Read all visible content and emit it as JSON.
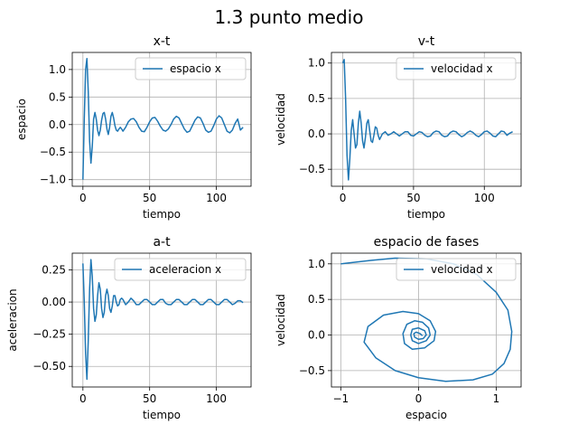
{
  "figure": {
    "title": "1.3 punto medio"
  },
  "series_color": "#1f77b4",
  "chart_data": [
    {
      "id": "xt",
      "type": "line",
      "title": "x-t",
      "xlabel": "tiempo",
      "ylabel": "espacio",
      "xlim": [
        -8,
        126
      ],
      "ylim": [
        -1.12,
        1.31
      ],
      "xticks": [
        0,
        50,
        100
      ],
      "yticks": [
        -1.0,
        -0.5,
        0.0,
        0.5,
        1.0
      ],
      "ytick_labels": [
        "−1.0",
        "−0.5",
        "0.0",
        "0.5",
        "1.0"
      ],
      "xtick_labels": [
        "0",
        "50",
        "100"
      ],
      "grid": true,
      "legend": {
        "position": "top-right",
        "entries": [
          "espacio x"
        ]
      },
      "series": [
        {
          "name": "espacio x",
          "x": [
            0,
            1,
            2,
            3,
            4,
            5,
            6,
            7,
            8,
            9,
            10,
            11,
            12,
            13,
            14,
            15,
            16,
            17,
            18,
            19,
            20,
            21,
            22,
            23,
            24,
            25,
            26,
            27,
            28,
            29,
            30,
            32,
            34,
            36,
            38,
            40,
            42,
            44,
            46,
            48,
            50,
            52,
            54,
            56,
            58,
            60,
            62,
            64,
            66,
            68,
            70,
            72,
            74,
            76,
            78,
            80,
            82,
            84,
            86,
            88,
            90,
            92,
            94,
            96,
            98,
            100,
            102,
            104,
            106,
            108,
            110,
            112,
            114,
            116,
            118,
            120
          ],
          "y": [
            -1.0,
            0.1,
            1.0,
            1.2,
            0.6,
            -0.3,
            -0.7,
            -0.4,
            0.1,
            0.22,
            0.1,
            -0.1,
            -0.2,
            -0.1,
            0.08,
            0.2,
            0.22,
            0.1,
            -0.08,
            -0.18,
            -0.05,
            0.15,
            0.22,
            0.12,
            -0.02,
            -0.1,
            -0.12,
            -0.08,
            -0.05,
            -0.08,
            -0.12,
            -0.05,
            0.05,
            0.1,
            0.11,
            0.05,
            -0.05,
            -0.12,
            -0.13,
            -0.05,
            0.05,
            0.12,
            0.13,
            0.06,
            -0.03,
            -0.1,
            -0.12,
            -0.08,
            0.0,
            0.1,
            0.15,
            0.12,
            0.02,
            -0.08,
            -0.14,
            -0.12,
            -0.02,
            0.08,
            0.14,
            0.12,
            0.02,
            -0.1,
            -0.14,
            -0.12,
            -0.02,
            0.1,
            0.16,
            0.12,
            0.0,
            -0.12,
            -0.15,
            -0.1,
            0.02,
            0.1,
            -0.1,
            -0.05
          ]
        }
      ]
    },
    {
      "id": "vt",
      "type": "line",
      "title": "v-t",
      "xlabel": "tiempo",
      "ylabel": "velocidad",
      "xlim": [
        -8,
        126
      ],
      "ylim": [
        -0.74,
        1.15
      ],
      "xticks": [
        0,
        50,
        100
      ],
      "yticks": [
        -0.5,
        0.0,
        0.5,
        1.0
      ],
      "ytick_labels": [
        "−0.5",
        "0.0",
        "0.5",
        "1.0"
      ],
      "xtick_labels": [
        "0",
        "50",
        "100"
      ],
      "grid": true,
      "legend": {
        "position": "top-right",
        "entries": [
          "velocidad x"
        ]
      },
      "series": [
        {
          "name": "velocidad x",
          "x": [
            0,
            1,
            2,
            3,
            4,
            5,
            6,
            7,
            8,
            9,
            10,
            11,
            12,
            13,
            14,
            15,
            16,
            17,
            18,
            19,
            20,
            21,
            22,
            23,
            24,
            25,
            26,
            28,
            30,
            32,
            34,
            36,
            38,
            40,
            42,
            44,
            46,
            48,
            50,
            52,
            54,
            56,
            58,
            60,
            62,
            64,
            66,
            68,
            70,
            72,
            74,
            76,
            78,
            80,
            82,
            84,
            86,
            88,
            90,
            92,
            94,
            96,
            98,
            100,
            102,
            104,
            106,
            108,
            110,
            112,
            114,
            116,
            118,
            120
          ],
          "y": [
            1.0,
            1.05,
            0.5,
            -0.3,
            -0.65,
            -0.35,
            0.05,
            0.2,
            0.0,
            -0.2,
            -0.15,
            0.15,
            0.32,
            0.15,
            -0.1,
            -0.2,
            -0.05,
            0.15,
            0.2,
            0.05,
            -0.1,
            -0.12,
            -0.02,
            0.1,
            0.08,
            -0.02,
            -0.08,
            0.0,
            0.03,
            -0.02,
            0.0,
            0.03,
            0.0,
            -0.03,
            0.0,
            0.03,
            0.03,
            -0.02,
            -0.03,
            0.0,
            0.03,
            0.02,
            -0.02,
            -0.04,
            -0.03,
            0.02,
            0.04,
            0.03,
            -0.02,
            -0.04,
            -0.03,
            0.02,
            0.04,
            0.03,
            -0.01,
            -0.04,
            -0.02,
            0.02,
            0.04,
            0.02,
            -0.02,
            -0.04,
            -0.01,
            0.03,
            0.04,
            0.01,
            -0.03,
            -0.04,
            0.0,
            0.04,
            0.03,
            -0.02,
            0.01,
            0.03
          ]
        }
      ]
    },
    {
      "id": "at",
      "type": "line",
      "title": "a-t",
      "xlabel": "tiempo",
      "ylabel": "aceleracion",
      "xlim": [
        -8,
        126
      ],
      "ylim": [
        -0.66,
        0.38
      ],
      "xticks": [
        0,
        50,
        100
      ],
      "yticks": [
        -0.5,
        -0.25,
        0.0,
        0.25
      ],
      "ytick_labels": [
        "−0.50",
        "−0.25",
        "0.00",
        "0.25"
      ],
      "xtick_labels": [
        "0",
        "50",
        "100"
      ],
      "grid": true,
      "legend": {
        "position": "top-right",
        "entries": [
          "aceleracion x"
        ]
      },
      "series": [
        {
          "name": "aceleracion x",
          "x": [
            0,
            1,
            2,
            3,
            4,
            5,
            6,
            7,
            8,
            9,
            10,
            11,
            12,
            13,
            14,
            15,
            16,
            17,
            18,
            19,
            20,
            21,
            22,
            23,
            24,
            25,
            26,
            27,
            28,
            29,
            30,
            32,
            34,
            36,
            38,
            40,
            42,
            44,
            46,
            48,
            50,
            52,
            54,
            56,
            58,
            60,
            62,
            64,
            66,
            68,
            70,
            72,
            74,
            76,
            78,
            80,
            82,
            84,
            86,
            88,
            90,
            92,
            94,
            96,
            98,
            100,
            102,
            104,
            106,
            108,
            110,
            112,
            114,
            116,
            118,
            120
          ],
          "y": [
            0.3,
            0.0,
            -0.4,
            -0.6,
            -0.3,
            0.1,
            0.33,
            0.2,
            -0.05,
            -0.15,
            -0.1,
            0.05,
            0.15,
            0.1,
            -0.05,
            -0.12,
            -0.08,
            0.05,
            0.1,
            0.05,
            -0.05,
            -0.08,
            -0.03,
            0.05,
            0.05,
            0.0,
            -0.03,
            -0.02,
            0.02,
            0.03,
            0.02,
            -0.02,
            0.0,
            0.03,
            0.01,
            -0.02,
            -0.02,
            0.0,
            0.02,
            0.02,
            0.0,
            -0.02,
            -0.02,
            0.0,
            0.02,
            0.02,
            -0.01,
            -0.02,
            -0.02,
            0.0,
            0.02,
            0.02,
            0.0,
            -0.02,
            -0.02,
            0.0,
            0.02,
            0.02,
            0.0,
            -0.02,
            -0.02,
            0.0,
            0.02,
            0.02,
            0.0,
            -0.02,
            -0.02,
            0.0,
            0.02,
            0.02,
            0.0,
            -0.02,
            -0.01,
            0.01,
            0.01,
            -0.005
          ]
        }
      ]
    },
    {
      "id": "phase",
      "type": "line",
      "title": "espacio de fases",
      "xlabel": "espacio",
      "ylabel": "velocidad",
      "xlim": [
        -1.12,
        1.32
      ],
      "ylim": [
        -0.73,
        1.15
      ],
      "xticks": [
        -1,
        0,
        1
      ],
      "yticks": [
        -0.5,
        0.0,
        0.5,
        1.0
      ],
      "ytick_labels": [
        "−0.5",
        "0.0",
        "0.5",
        "1.0"
      ],
      "xtick_labels": [
        "−1",
        "0",
        "1"
      ],
      "grid": true,
      "legend": {
        "position": "top-right",
        "entries": [
          "velocidad x"
        ]
      },
      "series": [
        {
          "name": "velocidad x",
          "x": [
            -1.0,
            -0.6,
            -0.3,
            0.1,
            0.45,
            0.75,
            1.0,
            1.15,
            1.2,
            1.18,
            1.1,
            0.95,
            0.7,
            0.35,
            0.0,
            -0.3,
            -0.55,
            -0.7,
            -0.65,
            -0.45,
            -0.2,
            0.0,
            0.15,
            0.22,
            0.2,
            0.08,
            -0.08,
            -0.18,
            -0.2,
            -0.15,
            -0.05,
            0.05,
            0.13,
            0.15,
            0.1,
            0.0,
            -0.08,
            -0.1,
            -0.08,
            0.0,
            0.08,
            0.1,
            0.06,
            0.0,
            -0.05,
            -0.06,
            -0.03,
            0.02,
            0.05
          ],
          "y": [
            1.0,
            1.05,
            1.08,
            1.07,
            1.0,
            0.85,
            0.6,
            0.35,
            0.05,
            -0.2,
            -0.4,
            -0.55,
            -0.63,
            -0.65,
            -0.6,
            -0.5,
            -0.32,
            -0.1,
            0.12,
            0.28,
            0.33,
            0.3,
            0.2,
            0.05,
            -0.08,
            -0.18,
            -0.2,
            -0.12,
            0.02,
            0.15,
            0.2,
            0.18,
            0.1,
            0.0,
            -0.08,
            -0.12,
            -0.08,
            0.0,
            0.08,
            0.1,
            0.06,
            0.0,
            -0.05,
            -0.06,
            -0.03,
            0.02,
            0.04,
            0.02,
            -0.01
          ]
        }
      ]
    }
  ]
}
